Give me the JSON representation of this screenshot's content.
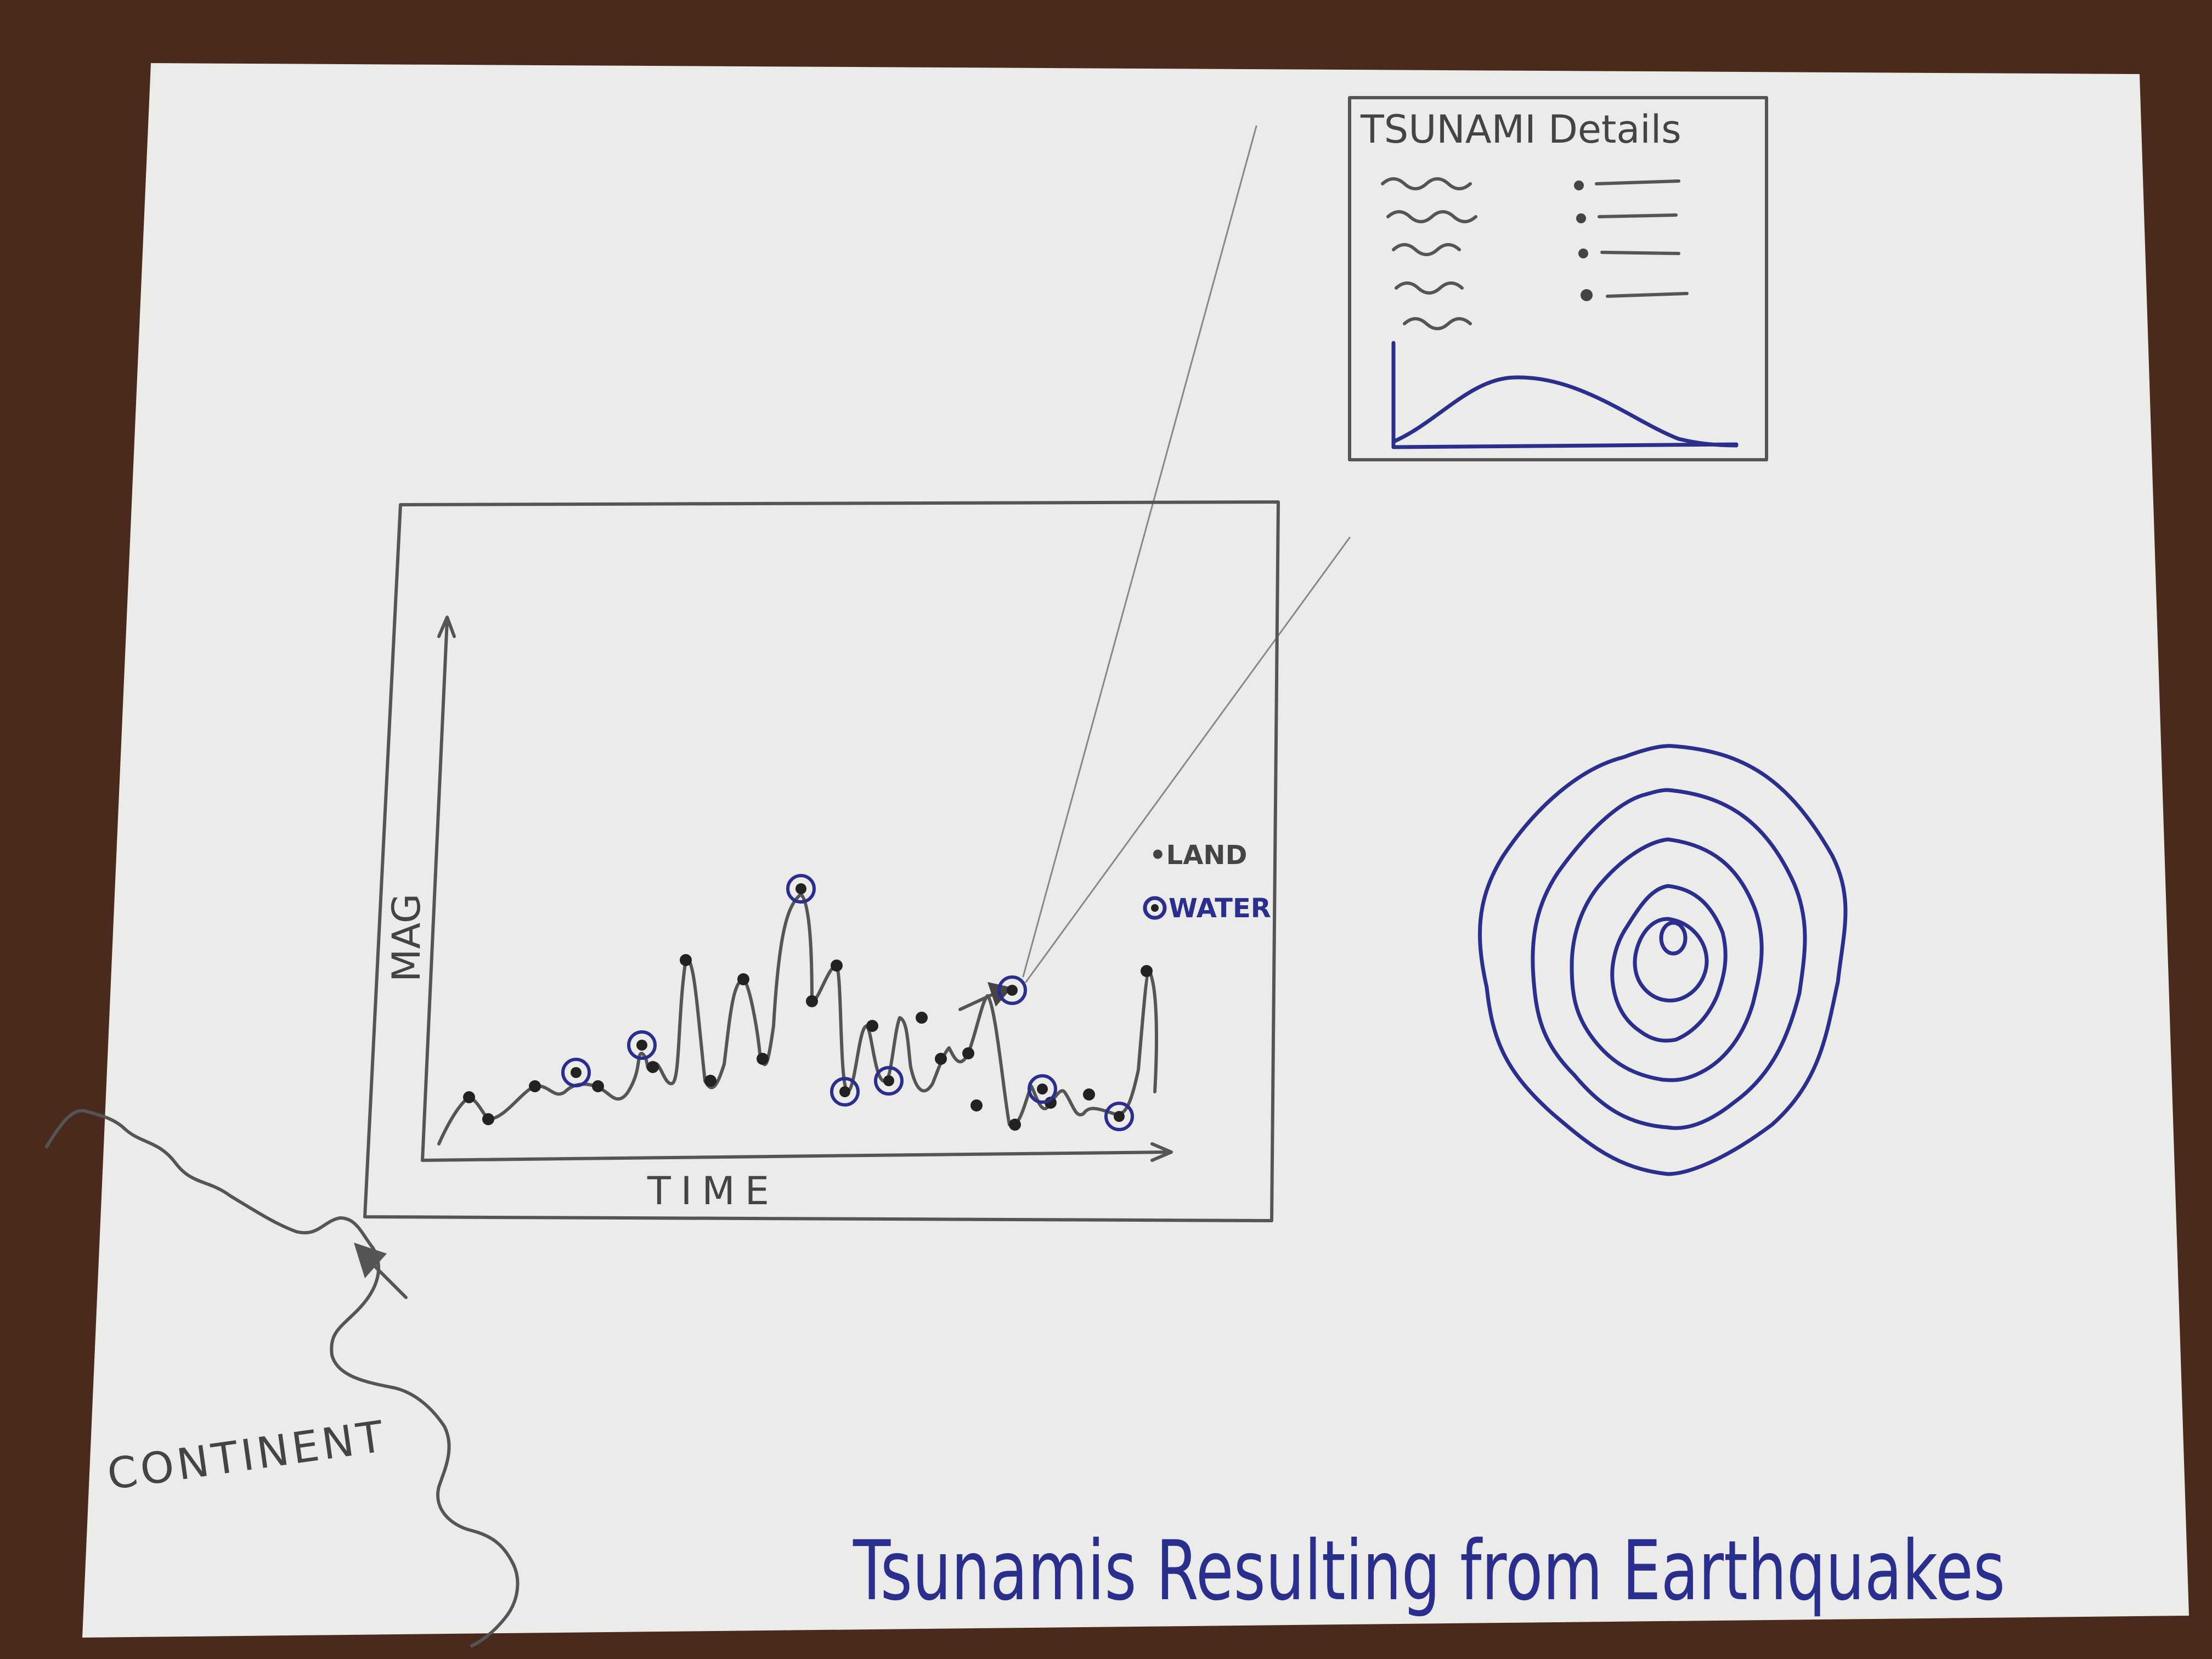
{
  "title": "Tsunamis Resulting from Earthquakes",
  "details_panel": {
    "heading": "TSUNAMI Details"
  },
  "timeline_chart": {
    "x_label": "TIME",
    "y_label": "MAG",
    "legend": {
      "land": "•LAND",
      "water": "WATER"
    }
  },
  "map": {
    "region_label": "CONTINENT"
  },
  "colors": {
    "paper": "#ebebe9",
    "table": "#4a2a1c",
    "pencil": "#555555",
    "pen_blue": "#2a2e8c"
  }
}
